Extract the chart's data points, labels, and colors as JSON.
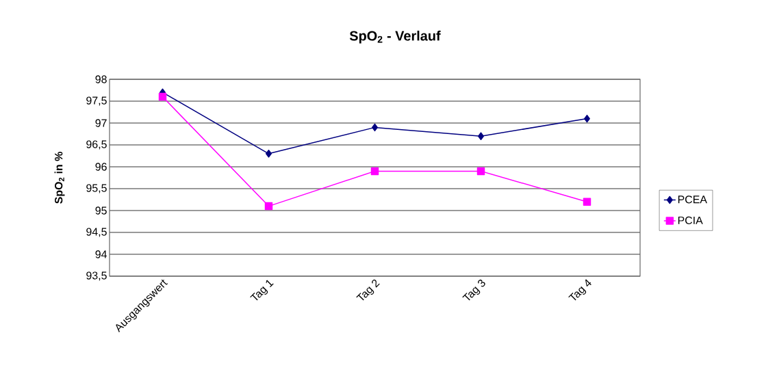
{
  "chart_data": {
    "type": "line",
    "title": "SpO$_{2}$ - Verlauf",
    "ylabel": "SpO$_{2}$ in %",
    "categories": [
      "Ausgangswert",
      "Tag 1",
      "Tag 2",
      "Tag 3",
      "Tag 4"
    ],
    "series": [
      {
        "name": "PCEA",
        "color": "#000080",
        "marker": "diamond",
        "values": [
          97.7,
          96.3,
          96.9,
          96.7,
          97.1
        ]
      },
      {
        "name": "PCIA",
        "color": "#ff00ff",
        "marker": "square",
        "values": [
          97.6,
          95.1,
          95.9,
          95.9,
          95.2
        ]
      }
    ],
    "ylim": [
      93.5,
      98
    ],
    "yticks": [
      {
        "value": 93.5,
        "label": "93,5"
      },
      94,
      {
        "value": 94.5,
        "label": "94,5"
      },
      95,
      {
        "value": 95.5,
        "label": "95,5"
      },
      96,
      {
        "value": 96.5,
        "label": "96,5"
      },
      97,
      {
        "value": 97.5,
        "label": "97,5"
      },
      98
    ],
    "grid": "y",
    "legend": "right",
    "line_style": "solid"
  }
}
